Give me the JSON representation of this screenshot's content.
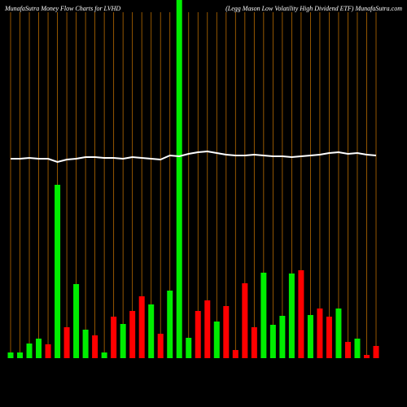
{
  "chart_data": {
    "type": "bar",
    "title": "MunafaSutra  Money Flow  Charts for LVHD",
    "subtitle": "(Legg Mason  Low  Volatility High Dividend ETF) MunafaSutra.com",
    "categories": [
      null,
      null,
      null,
      null,
      null,
      null,
      null,
      null,
      null,
      null,
      null,
      null,
      null,
      null,
      null,
      null,
      null,
      null,
      null,
      null,
      null,
      null,
      null,
      null,
      null,
      null,
      null,
      null,
      null,
      null,
      null,
      null,
      null,
      null,
      null,
      null,
      null,
      null,
      null,
      null
    ],
    "values": [
      7,
      7,
      18,
      24,
      17,
      213,
      38,
      91,
      35,
      28,
      7,
      51,
      42,
      58,
      76,
      66,
      30,
      83,
      440,
      25,
      58,
      71,
      45,
      64,
      10,
      92,
      38,
      105,
      41,
      52,
      104,
      108,
      53,
      61,
      51,
      61,
      20,
      24,
      4,
      15
    ],
    "colors": [
      "#00ee00",
      "#00ee00",
      "#00ee00",
      "#00ee00",
      "#ff0000",
      "#00ee00",
      "#ff0000",
      "#00ee00",
      "#00ee00",
      "#ff0000",
      "#00ee00",
      "#ff0000",
      "#00ee00",
      "#ff0000",
      "#ff0000",
      "#00ee00",
      "#ff0000",
      "#00ee00",
      "#00ee00",
      "#00ee00",
      "#ff0000",
      "#ff0000",
      "#00ee00",
      "#ff0000",
      "#ff0000",
      "#ff0000",
      "#ff0000",
      "#00ee00",
      "#00ee00",
      "#00ee00",
      "#00ee00",
      "#ff0000",
      "#00ee00",
      "#ff0000",
      "#ff0000",
      "#00ee00",
      "#ff0000",
      "#00ee00",
      "#ff0000",
      "#ff0000"
    ],
    "ylim": [
      0,
      440
    ],
    "line": {
      "color": "#ffffff",
      "values": [
        245,
        245,
        246,
        245,
        245,
        241,
        244,
        245,
        247,
        247,
        246,
        246,
        245,
        247,
        246,
        245,
        244,
        249,
        248,
        251,
        253,
        254,
        252,
        250,
        249,
        249,
        250,
        249,
        248,
        248,
        247,
        248,
        249,
        250,
        252,
        253,
        251,
        252,
        250,
        249
      ]
    },
    "y2lim": [
      0,
      440
    ],
    "grid": true,
    "grid_color": "#b86b00"
  }
}
